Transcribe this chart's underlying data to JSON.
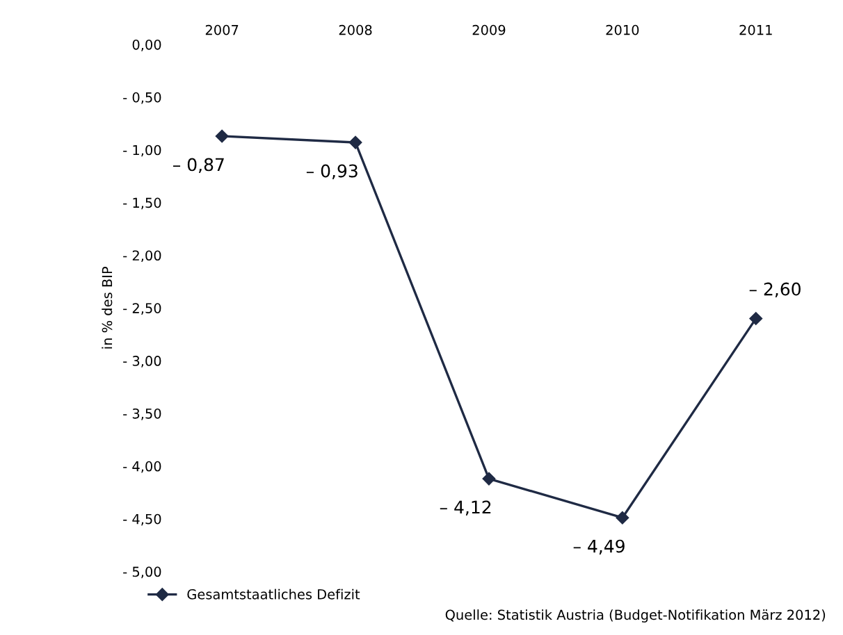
{
  "chart_data": {
    "type": "line",
    "ylabel": "in % des BIP",
    "categories": [
      "2007",
      "2008",
      "2009",
      "2010",
      "2011"
    ],
    "series": [
      {
        "name": "Gesamtstaatliches Defizit",
        "color": "#1f2a44",
        "values": [
          -0.87,
          -0.93,
          -4.12,
          -4.49,
          -2.6
        ],
        "value_labels": [
          "– 0,87",
          "– 0,93",
          "– 4,12",
          "– 4,49",
          "– 2,60"
        ]
      }
    ],
    "ylim": [
      -5,
      0
    ],
    "yticks": [
      {
        "value": 0,
        "label": "0,00"
      },
      {
        "value": -0.5,
        "label": "- 0,50"
      },
      {
        "value": -1,
        "label": "- 1,00"
      },
      {
        "value": -1.5,
        "label": "- 1,50"
      },
      {
        "value": -2,
        "label": "- 2,00"
      },
      {
        "value": -2.5,
        "label": "- 2,50"
      },
      {
        "value": -3,
        "label": "- 3,00"
      },
      {
        "value": -3.5,
        "label": "- 3,50"
      },
      {
        "value": -4,
        "label": "- 4,00"
      },
      {
        "value": -4.5,
        "label": "- 4,50"
      },
      {
        "value": -5,
        "label": "- 5,00"
      }
    ],
    "marker": "diamond",
    "grid": false,
    "legend": "bottom left",
    "annotations": [
      "Quelle: Statistik Austria (Budget-Notifikation März 2012)"
    ]
  }
}
